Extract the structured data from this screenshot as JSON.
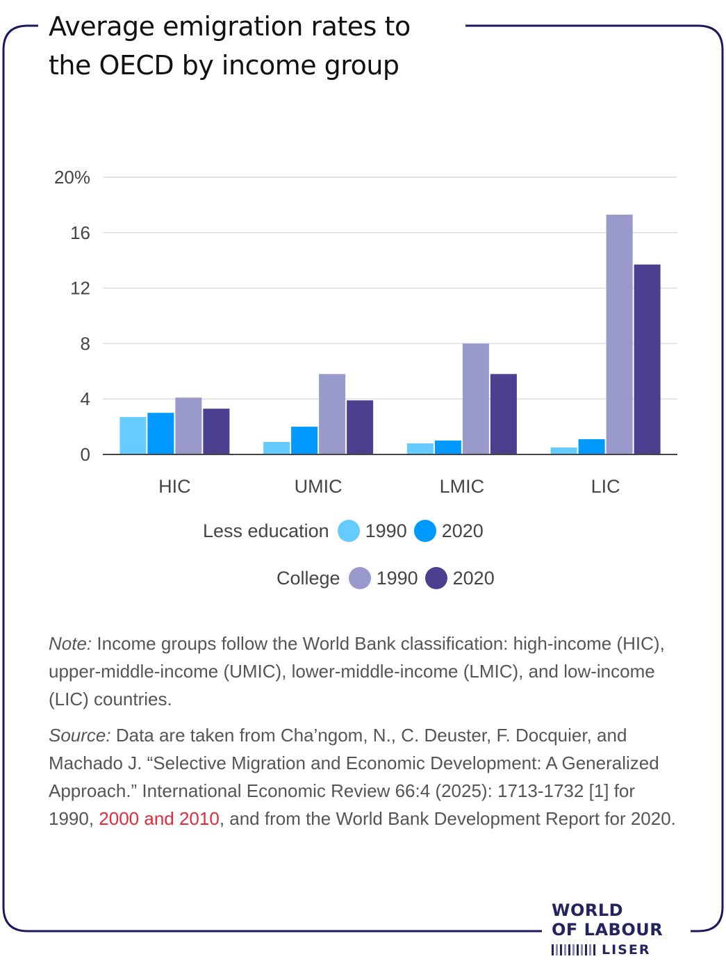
{
  "title_lines": [
    "Average emigration rates to",
    "the OECD by income group"
  ],
  "colors": {
    "less_1990": "#66ccff",
    "less_2020": "#0099ff",
    "college_1990": "#9999cc",
    "college_2020": "#4b3f8f",
    "frame": "#1a1a5e",
    "highlight": "#e52b3a"
  },
  "chart_data": {
    "type": "bar",
    "categories": [
      "HIC",
      "UMIC",
      "LMIC",
      "LIC"
    ],
    "series": [
      {
        "name": "Less education 1990",
        "values": [
          2.7,
          0.9,
          0.8,
          0.5
        ]
      },
      {
        "name": "Less education 2020",
        "values": [
          3.0,
          2.0,
          1.0,
          1.1
        ]
      },
      {
        "name": "College 1990",
        "values": [
          4.1,
          5.8,
          8.0,
          17.3
        ]
      },
      {
        "name": "College 2020",
        "values": [
          3.3,
          3.9,
          5.8,
          13.7
        ]
      }
    ],
    "y_ticks": [
      "0",
      "4",
      "8",
      "12",
      "16",
      "20%"
    ],
    "ylim": [
      0,
      20
    ],
    "grid": true
  },
  "legend": {
    "less_label": "Less education",
    "college_label": "College",
    "year_a": "1990",
    "year_b": "2020"
  },
  "notes": {
    "note_label": "Note:",
    "note_text": " Income groups follow the World Bank classification: high-income (HIC), upper-middle-income (UMIC), lower-middle-income (LMIC), and low-income (LIC) countries.",
    "source_label": "Source:",
    "source_text_1": " Data are taken from Cha’ngom, N., C. Deuster, F. Docquier, and Machado J. “Selective Migration and Economic Development: A Generalized Approach.” International Economic Review 66:4 (2025): 1713-1732 [1] for 1990, ",
    "source_link": "2000 and 2010",
    "source_text_2": ", and from the World Bank Development Report for 2020."
  },
  "logo": {
    "line1": "WORLD",
    "line2": "OF LABOUR",
    "line3": "LISER"
  }
}
